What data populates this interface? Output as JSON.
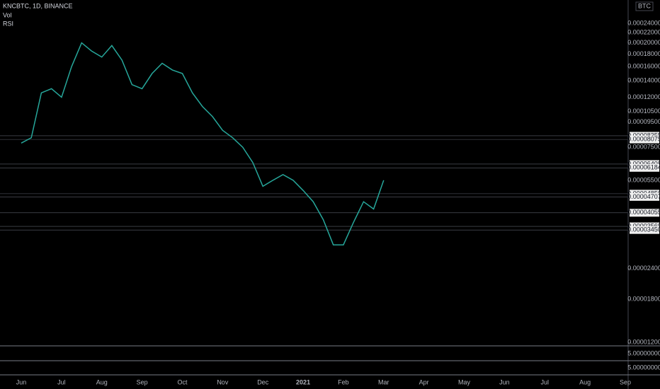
{
  "chart_data": {
    "type": "line",
    "title": "KNCBTC, 1D, BINANCE",
    "indicators": [
      "Vol",
      "RSI"
    ],
    "currency": "BTC",
    "log_scale": true,
    "categories": [
      "Jun",
      null,
      null,
      null,
      "Jul",
      null,
      null,
      null,
      "Aug",
      null,
      null,
      null,
      "Sep",
      null,
      null,
      null,
      "Oct",
      null,
      null,
      null,
      "Nov",
      null,
      null,
      null,
      "Dec",
      null,
      null,
      null,
      "2021",
      null,
      null,
      null,
      "Feb",
      null,
      null,
      null,
      "Mar",
      null,
      null,
      null,
      "Apr",
      null,
      null,
      null,
      "May",
      null,
      null,
      null,
      "Jun",
      null,
      null,
      null,
      "Jul",
      null,
      null,
      null,
      "Aug",
      null,
      null,
      null,
      "Sep",
      null,
      null,
      null
    ],
    "series": [
      {
        "name": "KNCBTC",
        "color": "#26a69a",
        "values": [
          7.8e-05,
          8.2e-05,
          0.000125,
          0.00013,
          0.00012,
          0.00016,
          0.0002,
          0.000185,
          0.000175,
          0.000195,
          0.00017,
          0.000135,
          0.00013,
          0.00015,
          0.000165,
          0.000155,
          0.00015,
          0.000125,
          0.00011,
          0.0001,
          8.8e-05,
          8.2e-05,
          7.5e-05,
          6.5e-05,
          5.2e-05,
          5.5e-05,
          5.8e-05,
          5.5e-05,
          5e-05,
          4.5e-05,
          3.8e-05,
          3e-05,
          3e-05,
          3.7e-05,
          4.5e-05,
          4.2e-05,
          5.5e-05,
          null,
          null,
          null,
          null,
          null,
          null,
          null,
          null,
          null,
          null,
          null,
          null,
          null,
          null,
          null,
          null,
          null,
          null,
          null,
          null,
          null,
          null,
          null,
          null,
          null,
          null,
          null
        ]
      }
    ],
    "ylim": [
      1.17e-05,
      0.000299
    ],
    "yticks": [
      {
        "value": 0.00024,
        "label": "0.00024000"
      },
      {
        "value": 0.00022,
        "label": "0.00022000"
      },
      {
        "value": 0.0002,
        "label": "0.00020000"
      },
      {
        "value": 0.00018,
        "label": "0.00018000"
      },
      {
        "value": 0.00016,
        "label": "0.00016000"
      },
      {
        "value": 0.00014,
        "label": "0.00014000"
      },
      {
        "value": 0.00012,
        "label": "0.00012000"
      },
      {
        "value": 0.000105,
        "label": "0.00010500"
      },
      {
        "value": 9.5e-05,
        "label": "0.00009500"
      },
      {
        "value": 7.5e-05,
        "label": "0.00007500"
      },
      {
        "value": 5.5e-05,
        "label": "0.00005500"
      },
      {
        "value": 2.4e-05,
        "label": "0.00002400"
      },
      {
        "value": 1.8e-05,
        "label": "0.00001800"
      },
      {
        "value": 1.2e-05,
        "label": "0.00001200"
      }
    ],
    "levels": [
      {
        "value": 8.355e-05,
        "label": "0.00008355"
      },
      {
        "value": 8.075e-05,
        "label": "0.00008075"
      },
      {
        "value": 6.408e-05,
        "label": "0.00006408"
      },
      {
        "value": 6.184e-05,
        "label": "0.00006184"
      },
      {
        "value": 4.85e-05,
        "label": "0.00004850"
      },
      {
        "value": 4.707e-05,
        "label": "0.00004707"
      },
      {
        "value": 4.055e-05,
        "label": "0.00004055"
      },
      {
        "value": 3.569e-05,
        "label": "0.00003569"
      },
      {
        "value": 3.45e-05,
        "label": "0.00003450"
      }
    ],
    "pane_labels": [
      "5.00000000",
      "5.00000000"
    ]
  }
}
